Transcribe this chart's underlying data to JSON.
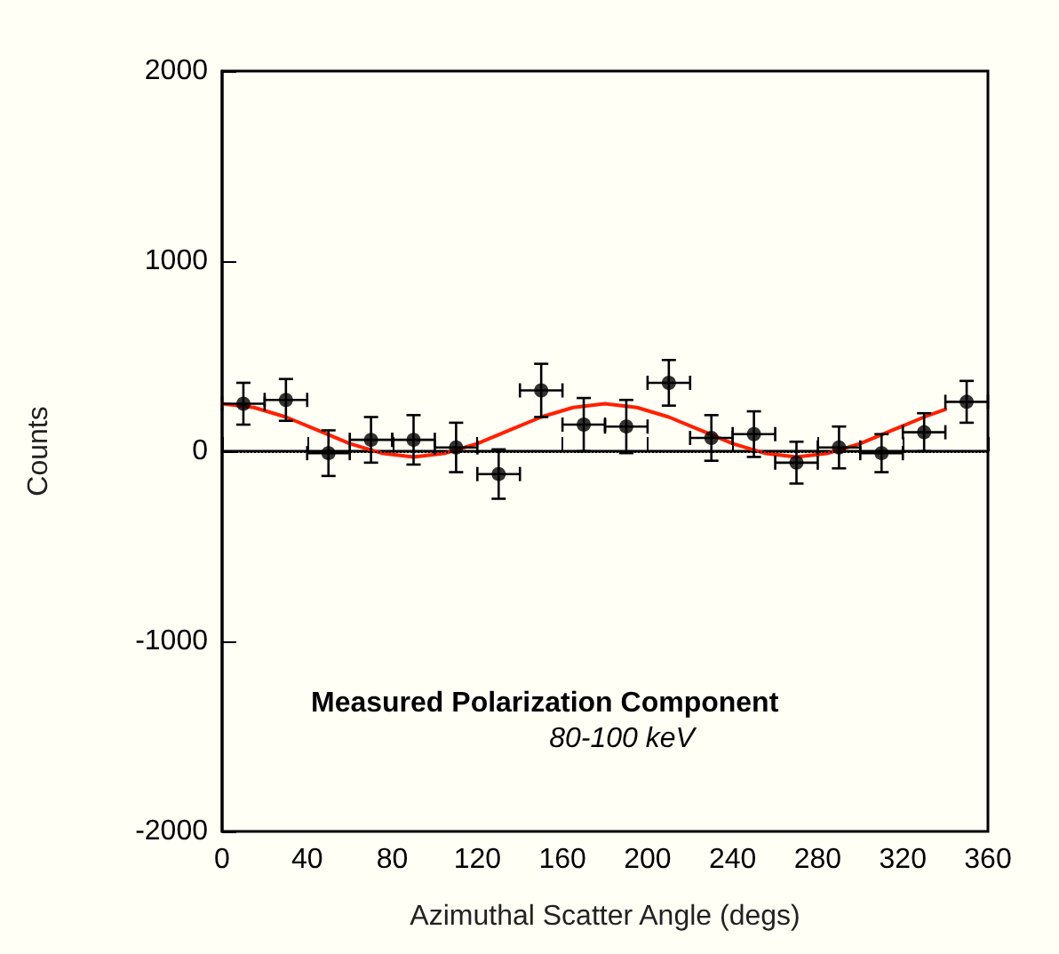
{
  "chart_data": {
    "type": "scatter",
    "xlabel": "Azimuthal Scatter Angle (degs)",
    "ylabel": "Counts",
    "annotations": [
      "Measured Polarization Component",
      "80-100 keV"
    ],
    "xlim": [
      0,
      360
    ],
    "xticks": [
      0,
      40,
      80,
      120,
      160,
      200,
      240,
      280,
      320,
      360
    ],
    "ylim": [
      -2000,
      2000
    ],
    "yticks": [
      -2000,
      -1000,
      0,
      1000,
      2000
    ],
    "grid": false,
    "marker": "circle",
    "ref_lines": [
      {
        "axis": "y",
        "value": 0,
        "color": "#000000",
        "line_style": "dotted"
      }
    ],
    "series": [
      {
        "type": "scatter",
        "color": "#000000",
        "x": [
          10,
          30,
          50,
          70,
          90,
          110,
          130,
          150,
          170,
          190,
          210,
          230,
          250,
          270,
          290,
          310,
          330,
          350
        ],
        "values": [
          250,
          270,
          -10,
          60,
          60,
          20,
          -120,
          320,
          140,
          130,
          360,
          70,
          90,
          -60,
          20,
          -10,
          100,
          260
        ],
        "errors": [
          110,
          110,
          120,
          120,
          130,
          130,
          130,
          140,
          140,
          140,
          120,
          120,
          120,
          110,
          110,
          100,
          100,
          110
        ],
        "xerrors": [
          10,
          10,
          10,
          10,
          10,
          10,
          10,
          10,
          10,
          10,
          10,
          10,
          10,
          10,
          10,
          10,
          10,
          10
        ]
      },
      {
        "type": "line",
        "color": "#ff2000",
        "line_style": "solid",
        "marker": "none",
        "x": [
          0,
          15,
          30,
          45,
          60,
          75,
          90,
          105,
          120,
          135,
          150,
          165,
          180,
          195,
          210,
          225,
          240,
          255,
          270,
          285,
          300,
          315,
          330,
          340
        ],
        "values": [
          250,
          230,
          180,
          110,
          40,
          -10,
          -30,
          -10,
          40,
          110,
          180,
          230,
          250,
          230,
          180,
          110,
          40,
          -10,
          -30,
          -10,
          40,
          110,
          180,
          220
        ]
      }
    ]
  }
}
